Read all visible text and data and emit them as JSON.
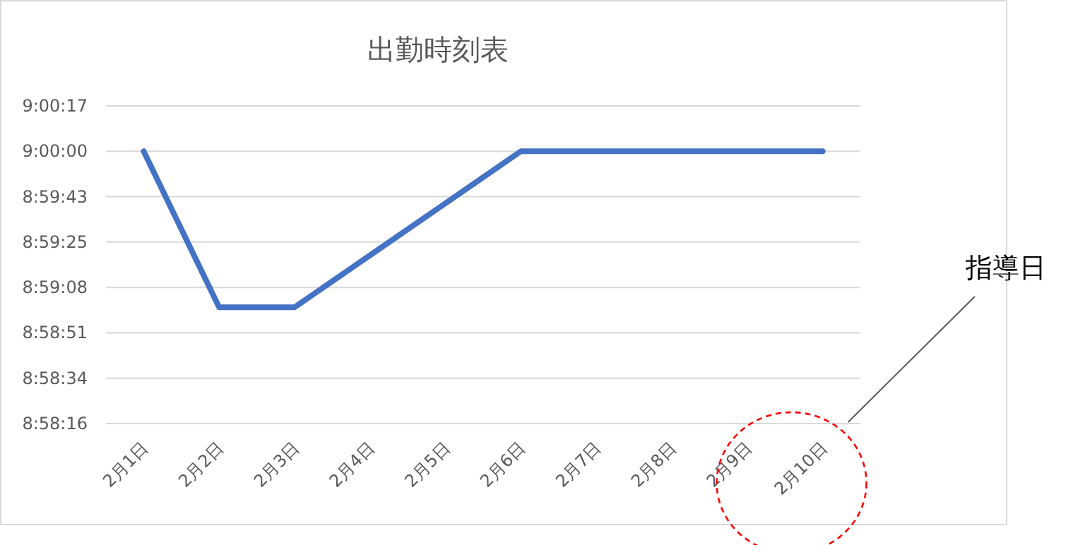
{
  "chart_data": {
    "type": "line",
    "title": "出勤時刻表",
    "categories": [
      "2月1日",
      "2月2日",
      "2月3日",
      "2月4日",
      "2月5日",
      "2月6日",
      "2月7日",
      "2月8日",
      "2月9日",
      "2月10日"
    ],
    "series": [
      {
        "color": "#4472c4",
        "values": [
          9.0,
          8.9835,
          8.9835,
          8.989,
          8.9945,
          9.0,
          9.0,
          9.0,
          9.0,
          9.0
        ]
      }
    ],
    "ylim": [
      8.9712,
      9.0048
    ],
    "yticks": [
      {
        "value": 8.9712,
        "label": "8:58:16"
      },
      {
        "value": 8.976,
        "label": "8:58:34"
      },
      {
        "value": 8.9808,
        "label": "8:58:51"
      },
      {
        "value": 8.9856,
        "label": "8:59:08"
      },
      {
        "value": 8.9904,
        "label": "8:59:25"
      },
      {
        "value": 8.9952,
        "label": "8:59:43"
      },
      {
        "value": 9.0,
        "label": "9:00:00"
      },
      {
        "value": 9.0048,
        "label": "9:00:17"
      }
    ],
    "grid": "y",
    "annotations": [
      "指導日"
    ]
  }
}
